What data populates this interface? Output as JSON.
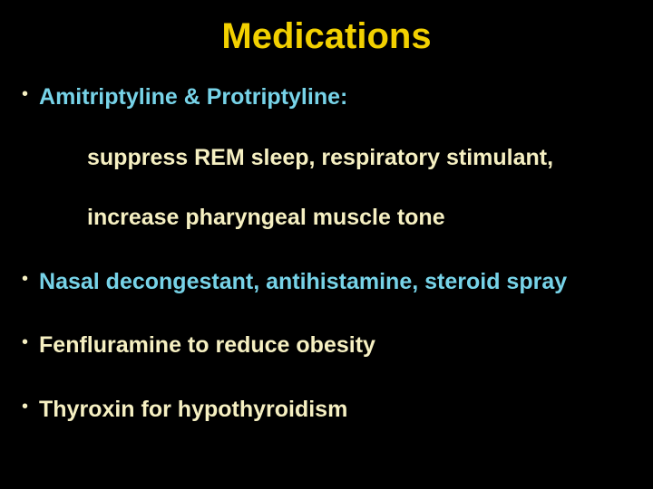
{
  "colors": {
    "background": "#000000",
    "title": "#f2d000",
    "bullet1": "#77d3e8",
    "sub1": "#f6f0c2",
    "sub2": "#f6f0c2",
    "bullet2": "#77d3e8",
    "bullet3": "#f6f0c2",
    "bullet4": "#f6f0c2",
    "bullet_dot": "#f6f0c2"
  },
  "typography": {
    "title_fontsize": 40,
    "body_fontsize": 25,
    "dot_fontsize": 20,
    "title_weight": "bold",
    "body_weight": "bold",
    "font_family": "Arial"
  },
  "title": "Medications",
  "bullets": {
    "b1": "Amitriptyline & Protriptyline:",
    "b1_sub1": "suppress REM sleep, respiratory stimulant,",
    "b1_sub2": "increase pharyngeal muscle tone",
    "b2": "Nasal decongestant, antihistamine, steroid spray",
    "b3": "Fenfluramine to reduce obesity",
    "b4": "Thyroxin for hypothyroidism"
  },
  "dot": "•"
}
